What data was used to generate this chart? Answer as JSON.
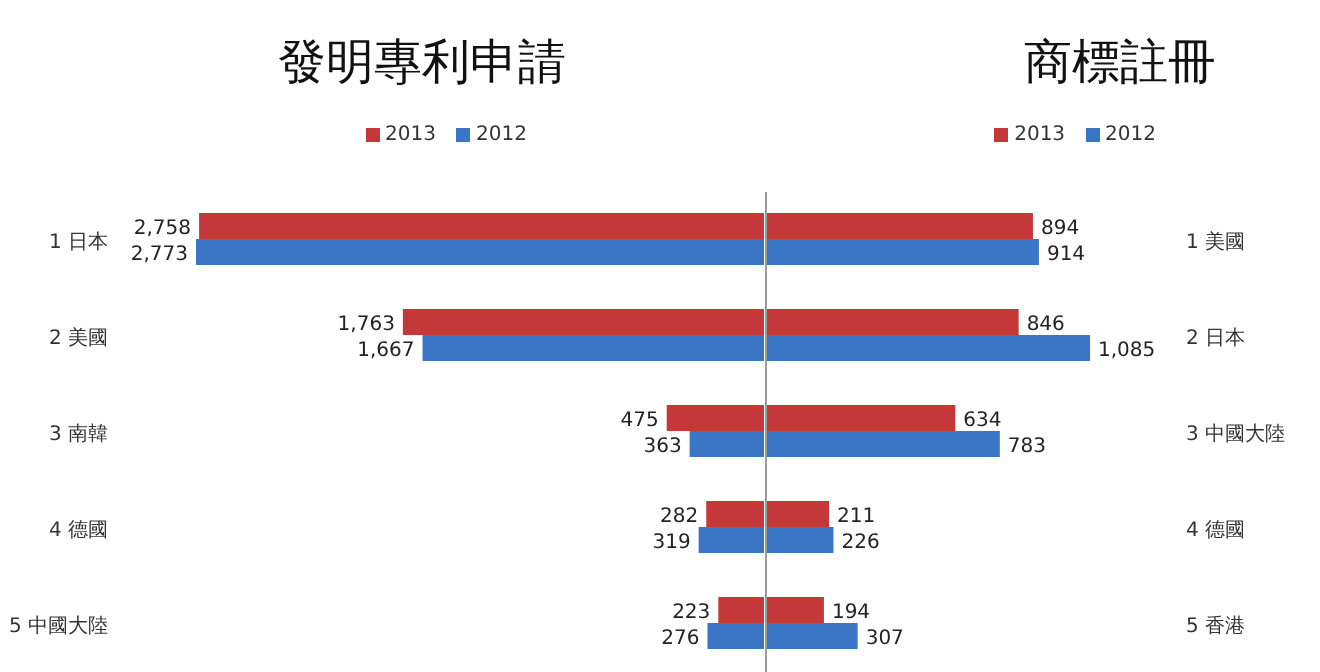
{
  "chart_data": [
    {
      "type": "bar",
      "orientation": "horizontal",
      "title": "發明專利申請",
      "categories": [
        "1 日本",
        "2 美國",
        "3 南韓",
        "4 德國",
        "5 中國大陸"
      ],
      "series": [
        {
          "name": "2013",
          "color": "#c4383a",
          "values": [
            2758,
            1763,
            475,
            282,
            223
          ],
          "value_labels": [
            "2,758",
            "1,763",
            "475",
            "282",
            "223"
          ]
        },
        {
          "name": "2012",
          "color": "#3b75c6",
          "values": [
            2773,
            1667,
            363,
            319,
            276
          ],
          "value_labels": [
            "2,773",
            "1,667",
            "363",
            "319",
            "276"
          ]
        }
      ],
      "legend": "top",
      "tick_labels": "y"
    },
    {
      "type": "bar",
      "orientation": "horizontal",
      "title": "商標註冊",
      "categories": [
        "1 美國",
        "2 日本",
        "3 中國大陸",
        "4 德國",
        "5 香港"
      ],
      "series": [
        {
          "name": "2013",
          "color": "#c4383a",
          "values": [
            894,
            846,
            634,
            211,
            194
          ],
          "value_labels": [
            "894",
            "846",
            "634",
            "211",
            "194"
          ]
        },
        {
          "name": "2012",
          "color": "#3b75c6",
          "values": [
            914,
            1085,
            783,
            226,
            307
          ],
          "value_labels": [
            "914",
            "1,085",
            "783",
            "226",
            "307"
          ]
        }
      ],
      "legend": "top right",
      "tick_labels": "y"
    }
  ]
}
